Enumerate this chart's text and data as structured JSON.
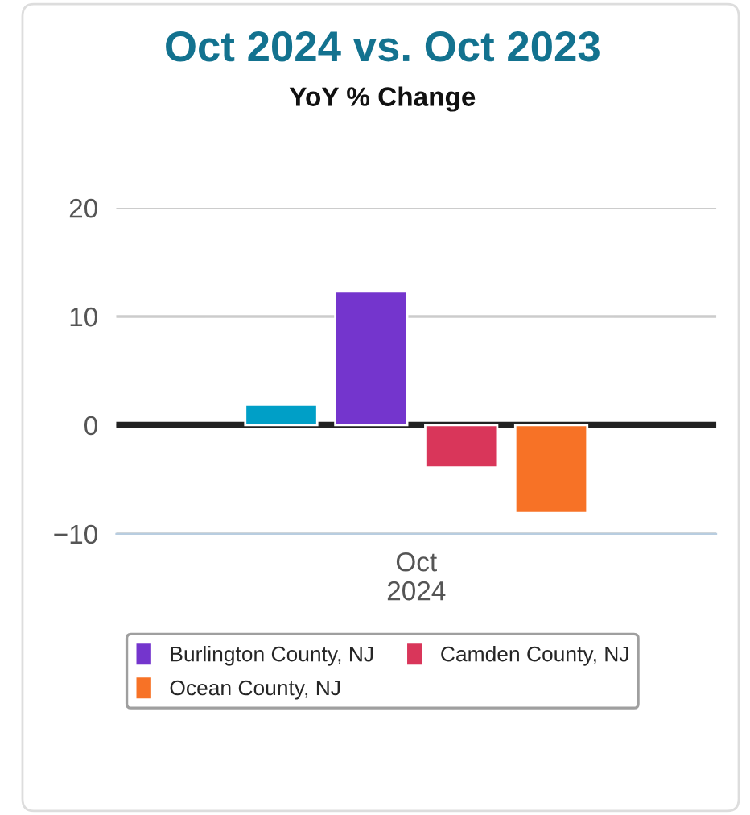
{
  "chart_data": {
    "type": "bar",
    "title": "Oct 2024 vs. Oct 2023",
    "subtitle": "YoY % Change",
    "categories": [
      "Oct\n2024"
    ],
    "series": [
      {
        "color": "#009fc7",
        "values": [
          1.9
        ]
      },
      {
        "name": "Burlington County, NJ",
        "color": "#7435cd",
        "values": [
          12.3
        ]
      },
      {
        "name": "Camden County, NJ",
        "color": "#d9365a",
        "values": [
          -3.9
        ]
      },
      {
        "name": "Ocean County, NJ",
        "color": "#f77226",
        "values": [
          -8.1
        ]
      }
    ],
    "ylim": [
      -10,
      20
    ],
    "yticks": [
      -10,
      0,
      10,
      20
    ],
    "grid": "y",
    "ref_lines": [
      {
        "axis": "y",
        "value": 0,
        "color": "#222222"
      }
    ],
    "legend": "bottom"
  }
}
